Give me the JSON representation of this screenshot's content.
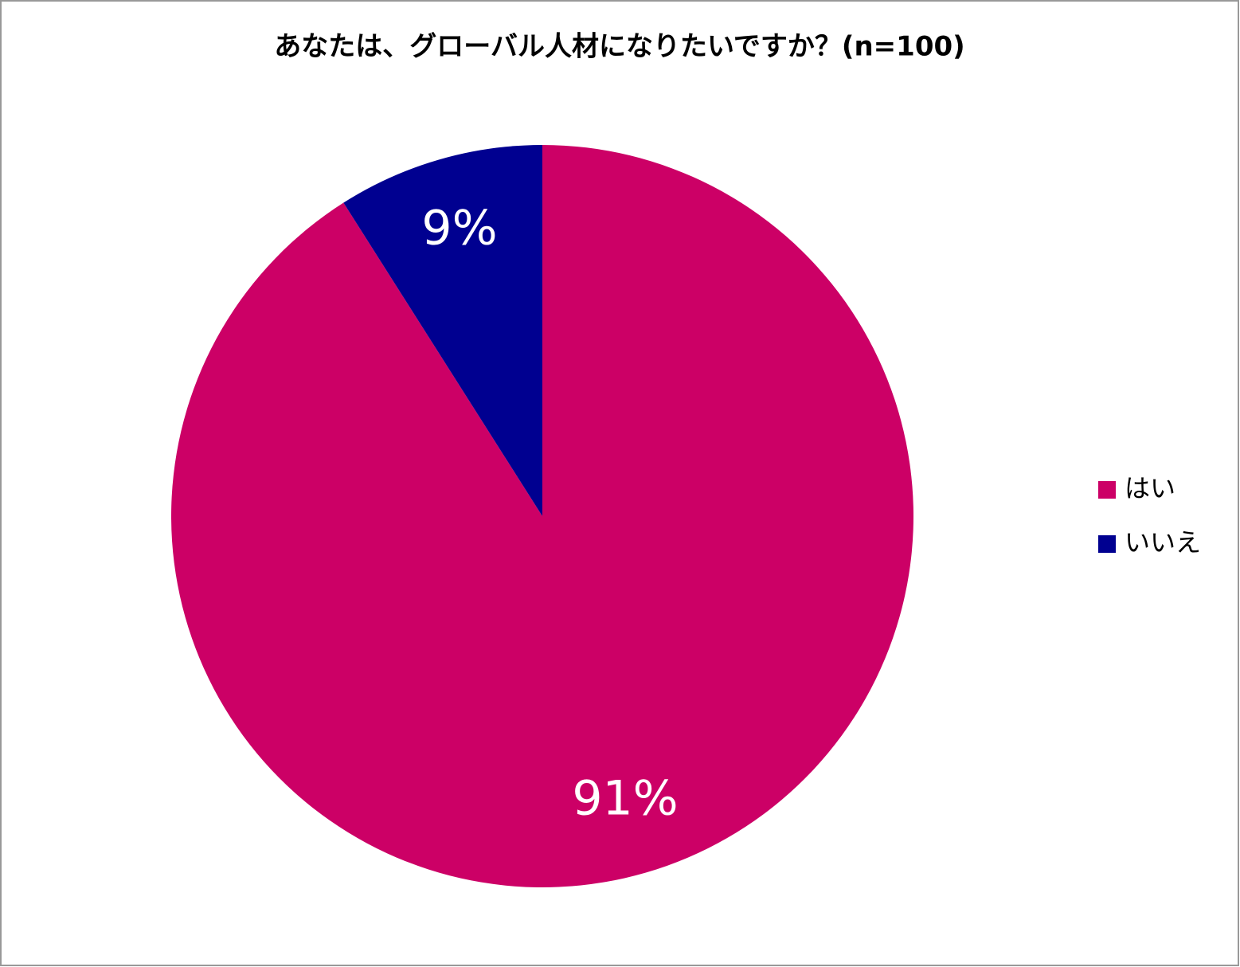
{
  "chart_data": {
    "type": "pie",
    "title": "あなたは、グローバル人材になりたいですか？(n=100)",
    "categories": [
      "はい",
      "いいえ"
    ],
    "values": [
      91,
      9
    ],
    "value_labels": [
      "91%",
      "9%"
    ],
    "colors": [
      "#cc0066",
      "#000090"
    ],
    "legend": "right"
  }
}
